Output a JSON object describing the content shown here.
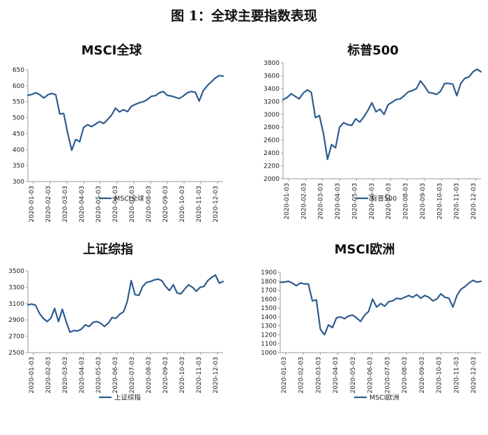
{
  "figure_title": "图 1：全球主要指数表现",
  "colors": {
    "series": "#2E5C8F",
    "axis": "#9a9a9a"
  },
  "chart_data": [
    {
      "type": "line",
      "title": "MSCI全球",
      "xlabel": "",
      "ylabel": "",
      "ylim": [
        300,
        650
      ],
      "yticks": [
        300,
        350,
        400,
        450,
        500,
        550,
        600,
        650
      ],
      "x_tick_labels": [
        "2020-01-03",
        "2020-02-03",
        "2020-03-03",
        "2020-04-03",
        "2020-05-03",
        "2020-06-03",
        "2020-07-03",
        "2020-08-03",
        "2020-09-03",
        "2020-10-03",
        "2020-11-03",
        "2020-12-03"
      ],
      "legend": "bottom",
      "grid": false,
      "series": [
        {
          "name": "MSCI全球",
          "values": [
            570,
            573,
            578,
            572,
            562,
            572,
            576,
            572,
            512,
            513,
            452,
            398,
            432,
            425,
            470,
            478,
            472,
            480,
            488,
            482,
            494,
            508,
            530,
            518,
            525,
            519,
            536,
            542,
            547,
            550,
            557,
            567,
            569,
            578,
            582,
            570,
            568,
            564,
            560,
            568,
            578,
            582,
            580,
            552,
            584,
            600,
            612,
            624,
            632,
            630
          ]
        }
      ]
    },
    {
      "type": "line",
      "title": "标普500",
      "xlabel": "",
      "ylabel": "",
      "ylim": [
        2000,
        3800
      ],
      "yticks": [
        2000,
        2200,
        2400,
        2600,
        2800,
        3000,
        3200,
        3400,
        3600,
        3800
      ],
      "x_tick_labels": [
        "2020-01-03",
        "2020-02-03",
        "2020-03-03",
        "2020-04-03",
        "2020-05-03",
        "2020-06-03",
        "2020-07-03",
        "2020-08-03",
        "2020-09-03",
        "2020-10-03",
        "2020-11-03",
        "2020-12-03"
      ],
      "legend": "bottom",
      "grid": false,
      "series": [
        {
          "name": "标普500",
          "values": [
            3230,
            3260,
            3320,
            3280,
            3240,
            3330,
            3380,
            3340,
            2950,
            2980,
            2700,
            2300,
            2530,
            2480,
            2800,
            2870,
            2840,
            2830,
            2930,
            2880,
            2960,
            3060,
            3180,
            3040,
            3080,
            3000,
            3150,
            3190,
            3230,
            3240,
            3290,
            3350,
            3370,
            3400,
            3520,
            3440,
            3340,
            3330,
            3310,
            3360,
            3480,
            3480,
            3470,
            3290,
            3480,
            3560,
            3580,
            3660,
            3700,
            3660
          ]
        }
      ]
    },
    {
      "type": "line",
      "title": "上证综指",
      "xlabel": "",
      "ylabel": "",
      "ylim": [
        2500,
        3500
      ],
      "yticks": [
        2500,
        2700,
        2900,
        3100,
        3300,
        3500
      ],
      "x_tick_labels": [
        "2020-01-03",
        "2020-02-03",
        "2020-03-03",
        "2020-04-03",
        "2020-05-03",
        "2020-06-03",
        "2020-07-03",
        "2020-08-03",
        "2020-09-03",
        "2020-10-03",
        "2020-11-03",
        "2020-12-03"
      ],
      "legend": "bottom",
      "grid": false,
      "series": [
        {
          "name": "上证综指",
          "values": [
            3085,
            3095,
            3080,
            2980,
            2920,
            2880,
            2920,
            3040,
            2880,
            3030,
            2880,
            2750,
            2770,
            2765,
            2790,
            2840,
            2820,
            2870,
            2880,
            2860,
            2820,
            2860,
            2930,
            2920,
            2970,
            3000,
            3130,
            3380,
            3210,
            3200,
            3310,
            3360,
            3370,
            3390,
            3400,
            3380,
            3310,
            3260,
            3330,
            3230,
            3220,
            3280,
            3330,
            3300,
            3250,
            3300,
            3310,
            3380,
            3420,
            3450,
            3350,
            3370
          ]
        }
      ]
    },
    {
      "type": "line",
      "title": "MSCI欧洲",
      "xlabel": "",
      "ylabel": "",
      "ylim": [
        1000,
        1900
      ],
      "yticks": [
        1000,
        1100,
        1200,
        1300,
        1400,
        1500,
        1600,
        1700,
        1800,
        1900
      ],
      "x_tick_labels": [
        "2020-01-03",
        "2020-02-03",
        "2020-03-03",
        "2020-04-03",
        "2020-05-03",
        "2020-06-03",
        "2020-07-03",
        "2020-08-03",
        "2020-09-03",
        "2020-10-03",
        "2020-11-03",
        "2020-12-03"
      ],
      "legend": "bottom",
      "grid": false,
      "series": [
        {
          "name": "MSCI欧洲",
          "values": [
            1790,
            1790,
            1800,
            1780,
            1750,
            1780,
            1770,
            1770,
            1580,
            1590,
            1260,
            1200,
            1310,
            1280,
            1390,
            1400,
            1380,
            1410,
            1420,
            1390,
            1350,
            1420,
            1460,
            1600,
            1510,
            1550,
            1520,
            1570,
            1580,
            1610,
            1600,
            1620,
            1640,
            1620,
            1650,
            1610,
            1640,
            1620,
            1580,
            1600,
            1660,
            1620,
            1610,
            1510,
            1640,
            1710,
            1740,
            1780,
            1810,
            1790,
            1800
          ]
        }
      ]
    }
  ]
}
